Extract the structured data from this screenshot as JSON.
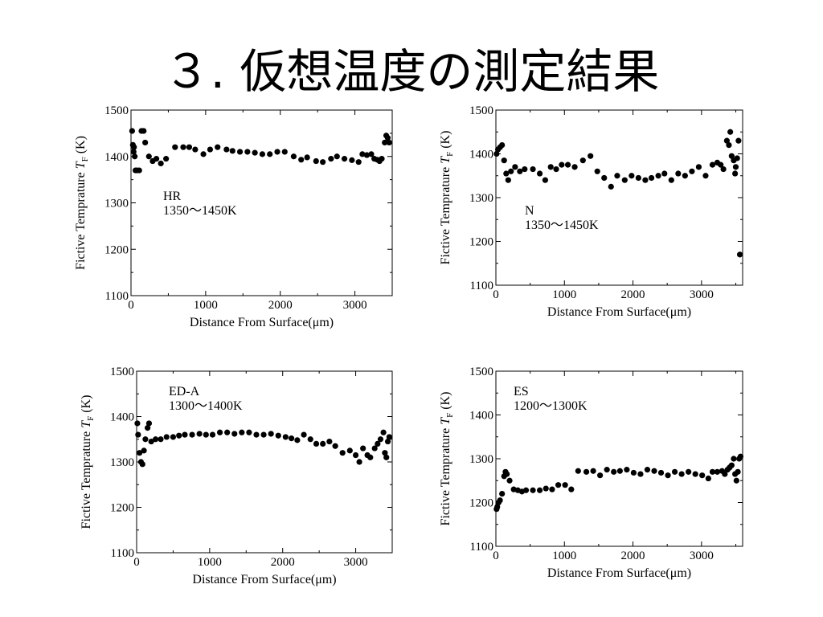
{
  "slide": {
    "title": "３. 仮想温度の測定結果"
  },
  "chart_data": [
    {
      "type": "scatter",
      "xlabel": "Distance From Surface(μm)",
      "ylabel": "Fictive Temprature T_F (K)",
      "annotation": [
        "HR",
        "1350～1450K"
      ],
      "xlim": [
        0,
        3500
      ],
      "ylim": [
        1100,
        1500
      ],
      "xticks": [
        0,
        1000,
        2000,
        3000
      ],
      "yticks": [
        1100,
        1200,
        1300,
        1400,
        1500
      ],
      "points": [
        [
          15,
          1455
        ],
        [
          25,
          1425
        ],
        [
          35,
          1410
        ],
        [
          40,
          1420
        ],
        [
          50,
          1400
        ],
        [
          60,
          1370
        ],
        [
          80,
          1370
        ],
        [
          110,
          1370
        ],
        [
          140,
          1455
        ],
        [
          170,
          1455
        ],
        [
          190,
          1430
        ],
        [
          240,
          1400
        ],
        [
          290,
          1390
        ],
        [
          340,
          1395
        ],
        [
          400,
          1385
        ],
        [
          470,
          1395
        ],
        [
          590,
          1420
        ],
        [
          700,
          1420
        ],
        [
          780,
          1420
        ],
        [
          860,
          1415
        ],
        [
          970,
          1405
        ],
        [
          1060,
          1415
        ],
        [
          1160,
          1420
        ],
        [
          1280,
          1415
        ],
        [
          1360,
          1412
        ],
        [
          1460,
          1410
        ],
        [
          1560,
          1410
        ],
        [
          1660,
          1408
        ],
        [
          1760,
          1405
        ],
        [
          1860,
          1405
        ],
        [
          1960,
          1410
        ],
        [
          2060,
          1410
        ],
        [
          2180,
          1400
        ],
        [
          2280,
          1393
        ],
        [
          2360,
          1398
        ],
        [
          2480,
          1390
        ],
        [
          2570,
          1388
        ],
        [
          2680,
          1395
        ],
        [
          2760,
          1400
        ],
        [
          2860,
          1395
        ],
        [
          2960,
          1392
        ],
        [
          3050,
          1388
        ],
        [
          3100,
          1405
        ],
        [
          3160,
          1403
        ],
        [
          3220,
          1405
        ],
        [
          3260,
          1395
        ],
        [
          3300,
          1393
        ],
        [
          3330,
          1390
        ],
        [
          3360,
          1395
        ],
        [
          3400,
          1430
        ],
        [
          3420,
          1445
        ],
        [
          3440,
          1440
        ],
        [
          3460,
          1430
        ]
      ]
    },
    {
      "type": "scatter",
      "xlabel": "Distance From Surface(μm)",
      "ylabel": "Fictive Temprature T_F (K)",
      "annotation": [
        "N",
        "1350～1450K"
      ],
      "xlim": [
        0,
        3600
      ],
      "ylim": [
        1100,
        1500
      ],
      "xticks": [
        0,
        1000,
        2000,
        3000
      ],
      "yticks": [
        1100,
        1200,
        1300,
        1400,
        1500
      ],
      "points": [
        [
          10,
          1400
        ],
        [
          30,
          1410
        ],
        [
          60,
          1415
        ],
        [
          90,
          1420
        ],
        [
          120,
          1385
        ],
        [
          150,
          1355
        ],
        [
          180,
          1340
        ],
        [
          220,
          1360
        ],
        [
          280,
          1370
        ],
        [
          350,
          1360
        ],
        [
          420,
          1365
        ],
        [
          540,
          1365
        ],
        [
          640,
          1355
        ],
        [
          720,
          1340
        ],
        [
          800,
          1370
        ],
        [
          880,
          1365
        ],
        [
          960,
          1375
        ],
        [
          1050,
          1375
        ],
        [
          1150,
          1370
        ],
        [
          1270,
          1385
        ],
        [
          1380,
          1395
        ],
        [
          1480,
          1360
        ],
        [
          1580,
          1345
        ],
        [
          1680,
          1325
        ],
        [
          1770,
          1350
        ],
        [
          1880,
          1340
        ],
        [
          1980,
          1350
        ],
        [
          2080,
          1345
        ],
        [
          2180,
          1340
        ],
        [
          2270,
          1345
        ],
        [
          2370,
          1350
        ],
        [
          2460,
          1355
        ],
        [
          2560,
          1340
        ],
        [
          2660,
          1355
        ],
        [
          2760,
          1350
        ],
        [
          2860,
          1360
        ],
        [
          2960,
          1370
        ],
        [
          3060,
          1350
        ],
        [
          3160,
          1375
        ],
        [
          3230,
          1380
        ],
        [
          3280,
          1375
        ],
        [
          3320,
          1365
        ],
        [
          3370,
          1430
        ],
        [
          3400,
          1420
        ],
        [
          3420,
          1450
        ],
        [
          3440,
          1395
        ],
        [
          3470,
          1385
        ],
        [
          3490,
          1355
        ],
        [
          3500,
          1370
        ],
        [
          3520,
          1390
        ],
        [
          3540,
          1430
        ],
        [
          3560,
          1170
        ]
      ]
    },
    {
      "type": "scatter",
      "xlabel": "Distance From Surface(μm)",
      "ylabel": "Fictive Temprature T_F (K)",
      "annotation": [
        "ED-A",
        "1300～1400K"
      ],
      "xlim": [
        0,
        3500
      ],
      "ylim": [
        1100,
        1500
      ],
      "xticks": [
        0,
        1000,
        2000,
        3000
      ],
      "yticks": [
        1100,
        1200,
        1300,
        1400,
        1500
      ],
      "points": [
        [
          10,
          1385
        ],
        [
          20,
          1360
        ],
        [
          40,
          1320
        ],
        [
          60,
          1300
        ],
        [
          80,
          1295
        ],
        [
          100,
          1325
        ],
        [
          120,
          1350
        ],
        [
          150,
          1375
        ],
        [
          170,
          1385
        ],
        [
          200,
          1345
        ],
        [
          260,
          1350
        ],
        [
          330,
          1350
        ],
        [
          410,
          1355
        ],
        [
          500,
          1355
        ],
        [
          580,
          1358
        ],
        [
          660,
          1360
        ],
        [
          760,
          1360
        ],
        [
          860,
          1362
        ],
        [
          950,
          1360
        ],
        [
          1040,
          1360
        ],
        [
          1140,
          1365
        ],
        [
          1240,
          1365
        ],
        [
          1340,
          1362
        ],
        [
          1440,
          1365
        ],
        [
          1540,
          1365
        ],
        [
          1640,
          1360
        ],
        [
          1740,
          1360
        ],
        [
          1840,
          1362
        ],
        [
          1940,
          1358
        ],
        [
          2040,
          1355
        ],
        [
          2120,
          1352
        ],
        [
          2200,
          1348
        ],
        [
          2290,
          1360
        ],
        [
          2380,
          1350
        ],
        [
          2460,
          1340
        ],
        [
          2550,
          1340
        ],
        [
          2640,
          1345
        ],
        [
          2720,
          1335
        ],
        [
          2820,
          1320
        ],
        [
          2920,
          1325
        ],
        [
          3000,
          1315
        ],
        [
          3050,
          1300
        ],
        [
          3100,
          1330
        ],
        [
          3160,
          1315
        ],
        [
          3200,
          1310
        ],
        [
          3260,
          1330
        ],
        [
          3300,
          1340
        ],
        [
          3340,
          1350
        ],
        [
          3380,
          1365
        ],
        [
          3400,
          1320
        ],
        [
          3420,
          1310
        ],
        [
          3440,
          1345
        ],
        [
          3460,
          1355
        ]
      ]
    },
    {
      "type": "scatter",
      "xlabel": "Distance From Surface(μm)",
      "ylabel": "Fictive Temprature T_F (K)",
      "annotation": [
        "ES",
        "1200～1300K"
      ],
      "xlim": [
        0,
        3600
      ],
      "ylim": [
        1100,
        1500
      ],
      "xticks": [
        0,
        1000,
        2000,
        3000
      ],
      "yticks": [
        1100,
        1200,
        1300,
        1400,
        1500
      ],
      "points": [
        [
          10,
          1185
        ],
        [
          20,
          1190
        ],
        [
          40,
          1200
        ],
        [
          60,
          1205
        ],
        [
          90,
          1220
        ],
        [
          120,
          1260
        ],
        [
          140,
          1270
        ],
        [
          160,
          1265
        ],
        [
          200,
          1250
        ],
        [
          260,
          1230
        ],
        [
          320,
          1228
        ],
        [
          380,
          1225
        ],
        [
          440,
          1228
        ],
        [
          540,
          1228
        ],
        [
          640,
          1228
        ],
        [
          730,
          1232
        ],
        [
          820,
          1230
        ],
        [
          910,
          1240
        ],
        [
          1010,
          1240
        ],
        [
          1100,
          1230
        ],
        [
          1200,
          1272
        ],
        [
          1320,
          1270
        ],
        [
          1420,
          1272
        ],
        [
          1520,
          1262
        ],
        [
          1620,
          1275
        ],
        [
          1720,
          1270
        ],
        [
          1810,
          1272
        ],
        [
          1910,
          1275
        ],
        [
          2010,
          1268
        ],
        [
          2110,
          1265
        ],
        [
          2210,
          1275
        ],
        [
          2310,
          1272
        ],
        [
          2410,
          1268
        ],
        [
          2510,
          1262
        ],
        [
          2610,
          1270
        ],
        [
          2710,
          1265
        ],
        [
          2810,
          1270
        ],
        [
          2910,
          1265
        ],
        [
          3010,
          1262
        ],
        [
          3100,
          1255
        ],
        [
          3160,
          1270
        ],
        [
          3230,
          1270
        ],
        [
          3300,
          1272
        ],
        [
          3340,
          1265
        ],
        [
          3380,
          1275
        ],
        [
          3410,
          1280
        ],
        [
          3440,
          1285
        ],
        [
          3470,
          1300
        ],
        [
          3490,
          1265
        ],
        [
          3510,
          1250
        ],
        [
          3530,
          1270
        ],
        [
          3550,
          1300
        ],
        [
          3570,
          1305
        ]
      ]
    }
  ]
}
